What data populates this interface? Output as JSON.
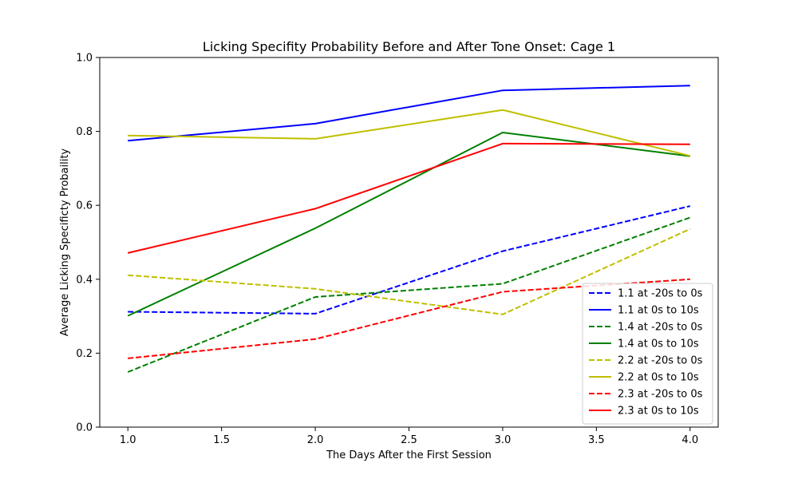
{
  "chart_data": {
    "type": "line",
    "title": "Licking Specifity Probability Before and After Tone Onset: Cage 1",
    "xlabel": "The Days After the First Session",
    "ylabel": "Average Licking Specificty Probaility",
    "xlim": [
      0.85,
      4.15
    ],
    "ylim": [
      0.0,
      1.0
    ],
    "xticks": [
      1.0,
      1.5,
      2.0,
      2.5,
      3.0,
      3.5,
      4.0
    ],
    "xtick_labels": [
      "1.0",
      "1.5",
      "2.0",
      "2.5",
      "3.0",
      "3.5",
      "4.0"
    ],
    "yticks": [
      0.0,
      0.2,
      0.4,
      0.6,
      0.8,
      1.0
    ],
    "ytick_labels": [
      "0.0",
      "0.2",
      "0.4",
      "0.6",
      "0.8",
      "1.0"
    ],
    "grid": false,
    "legend_position": "lower-right",
    "x": [
      1,
      2,
      3,
      4
    ],
    "series": [
      {
        "name": "1.1 at -20s to 0s",
        "color": "#0000ff",
        "style": "dashed",
        "values": [
          0.312,
          0.307,
          0.476,
          0.598
        ]
      },
      {
        "name": "1.1 at 0s to 10s",
        "color": "#0000ff",
        "style": "solid",
        "values": [
          0.775,
          0.821,
          0.911,
          0.924
        ]
      },
      {
        "name": "1.4 at -20s to 0s",
        "color": "#008000",
        "style": "dashed",
        "values": [
          0.149,
          0.352,
          0.388,
          0.567
        ]
      },
      {
        "name": "1.4 at 0s to 10s",
        "color": "#008000",
        "style": "solid",
        "values": [
          0.301,
          0.538,
          0.797,
          0.733
        ]
      },
      {
        "name": "2.2 at -20s to 0s",
        "color": "#bfbf00",
        "style": "dashed",
        "values": [
          0.411,
          0.374,
          0.305,
          0.536
        ]
      },
      {
        "name": "2.2 at 0s to 10s",
        "color": "#bfbf00",
        "style": "solid",
        "values": [
          0.789,
          0.78,
          0.858,
          0.734
        ]
      },
      {
        "name": "2.3 at -20s to 0s",
        "color": "#ff0000",
        "style": "dashed",
        "values": [
          0.186,
          0.238,
          0.366,
          0.4
        ]
      },
      {
        "name": "2.3 at 0s to 10s",
        "color": "#ff0000",
        "style": "solid",
        "values": [
          0.471,
          0.591,
          0.767,
          0.765
        ]
      }
    ]
  }
}
